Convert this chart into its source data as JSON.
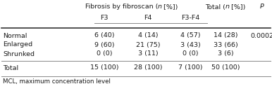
{
  "header1": "Fibrosis by fibroscan (",
  "header1_n": "n",
  "header1_end": " [%])",
  "header_total": "Total (",
  "header_total_n": "n",
  "header_total_end": " [%])",
  "header_p": "P",
  "subheaders": [
    "F3",
    "F4",
    "F3-F4"
  ],
  "row_labels": [
    "Normal",
    "Enlarged",
    "Shrunked",
    "Total"
  ],
  "col_f3": [
    "6 (40)",
    "9 (60)",
    "0 (0)",
    "15 (100)"
  ],
  "col_f4": [
    "4 (14)",
    "21 (75)",
    "3 (11)",
    "28 (100)"
  ],
  "col_f3f4": [
    "4 (57)",
    "3 (43)",
    "0 (0)",
    "7 (100)"
  ],
  "col_total": [
    "14 (28)",
    "33 (66)",
    "3 (6)",
    "50 (100)"
  ],
  "col_p": [
    "0.0002",
    "",
    "",
    ""
  ],
  "footnote": "MCL, maximum concentration level",
  "bg_color": "#ffffff",
  "text_color": "#1a1a1a",
  "font_size": 6.8,
  "footnote_font_size": 6.2
}
